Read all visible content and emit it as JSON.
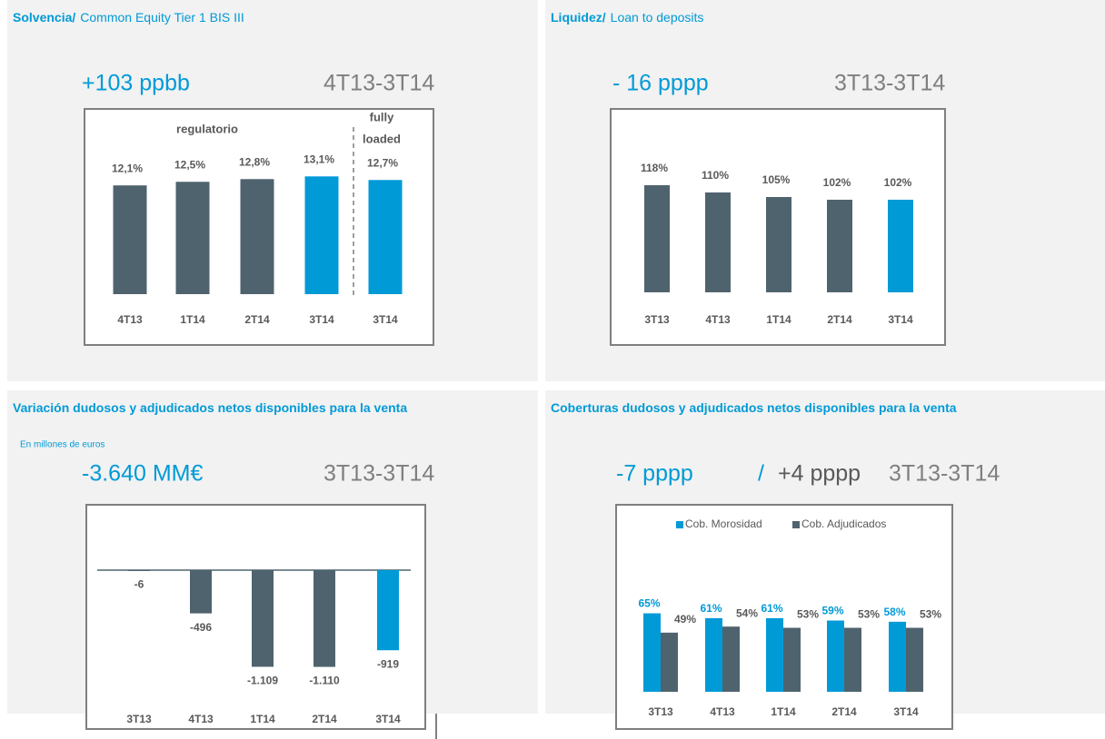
{
  "chart_data": [
    {
      "type": "bar",
      "title": "Solvencia/",
      "subtitle": "Common Equity Tier 1 BIS III",
      "headline": "+103 ppbb",
      "period": "4T13-3T14",
      "annotations": [
        "regulatorio",
        "fully",
        "loaded"
      ],
      "categories": [
        "4T13",
        "1T14",
        "2T14",
        "3T14",
        "3T14"
      ],
      "values": [
        12.1,
        12.5,
        12.8,
        13.1,
        12.7
      ],
      "value_labels": [
        "12,1%",
        "12,5%",
        "12,8%",
        "13,1%",
        "12,7%"
      ],
      "colors": [
        "#4f636e",
        "#4f636e",
        "#4f636e",
        "#009ad7",
        "#009ad7"
      ]
    },
    {
      "type": "bar",
      "title": "Liquidez/",
      "subtitle": "Loan to deposits",
      "headline": "- 16 pppp",
      "period": "3T13-3T14",
      "categories": [
        "3T13",
        "4T13",
        "1T14",
        "2T14",
        "3T14"
      ],
      "values": [
        118,
        110,
        105,
        102,
        102
      ],
      "value_labels": [
        "118%",
        "110%",
        "105%",
        "102%",
        "102%"
      ],
      "colors": [
        "#4f636e",
        "#4f636e",
        "#4f636e",
        "#4f636e",
        "#009ad7"
      ]
    },
    {
      "type": "bar",
      "title": "Variación dudosos y adjudicados netos disponibles para la venta",
      "note": "En millones de euros",
      "headline": "-3.640 MM€",
      "period": "3T13-3T14",
      "categories": [
        "3T13",
        "4T13",
        "1T14",
        "2T14",
        "3T14"
      ],
      "values": [
        -6,
        -496,
        -1109,
        -1110,
        -919
      ],
      "value_labels": [
        "-6",
        "-496",
        "-1.109",
        "-1.110",
        "-919"
      ],
      "colors": [
        "#4f636e",
        "#4f636e",
        "#4f636e",
        "#4f636e",
        "#009ad7"
      ]
    },
    {
      "type": "bar",
      "title": "Coberturas dudosos y adjudicados netos disponibles para la venta",
      "headline": "-7 pppp",
      "separator": "/",
      "headline_2": "+4 pppp",
      "period": "3T13-3T14",
      "categories": [
        "3T13",
        "4T13",
        "1T14",
        "2T14",
        "3T14"
      ],
      "series": [
        {
          "name": "Cob. Morosidad",
          "color": "#009ad7",
          "values": [
            65,
            61,
            61,
            59,
            58
          ],
          "value_labels": [
            "65%",
            "61%",
            "61%",
            "59%",
            "58%"
          ]
        },
        {
          "name": "Cob. Adjudicados",
          "color": "#4f636e",
          "values": [
            49,
            54,
            53,
            53,
            53
          ],
          "value_labels": [
            "49%",
            "54%",
            "53%",
            "53%",
            "53%"
          ]
        }
      ]
    }
  ]
}
